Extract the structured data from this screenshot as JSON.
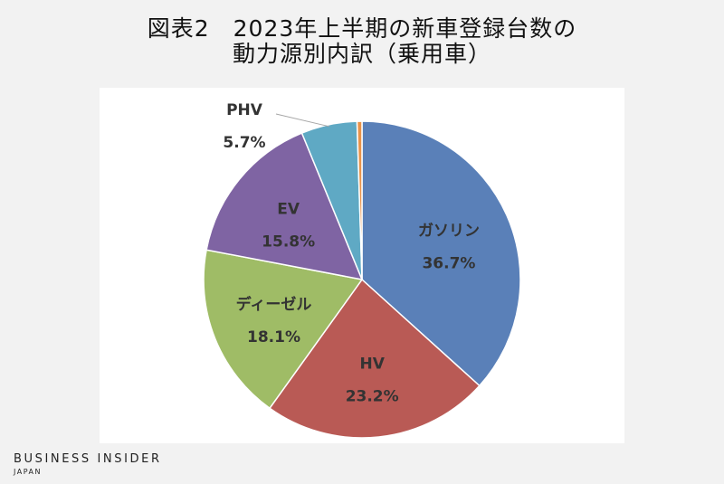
{
  "title_line1": "図表2　2023年上半期の新車登録台数の",
  "title_line2": "動力源別内訳（乗用車）",
  "brand": {
    "name": "BUSINESS INSIDER",
    "sub": "JAPAN"
  },
  "chart_data": {
    "type": "pie",
    "title": "図表2　2023年上半期の新車登録台数の 動力源別内訳（乗用車）",
    "unit": "%",
    "slices": [
      {
        "label": "ガソリン",
        "value": 36.7,
        "value_label": "36.7%",
        "color": "#5a80b8"
      },
      {
        "label": "HV",
        "value": 23.2,
        "value_label": "23.2%",
        "color": "#b95a55"
      },
      {
        "label": "ディーゼル",
        "value": 18.1,
        "value_label": "18.1%",
        "color": "#9fbc66"
      },
      {
        "label": "EV",
        "value": 15.8,
        "value_label": "15.8%",
        "color": "#7f64a3"
      },
      {
        "label": "PHV",
        "value": 5.7,
        "value_label": "5.7%",
        "color": "#5fa9c4"
      },
      {
        "label": "",
        "value": 0.5,
        "value_label": "",
        "color": "#e8934a"
      }
    ]
  }
}
